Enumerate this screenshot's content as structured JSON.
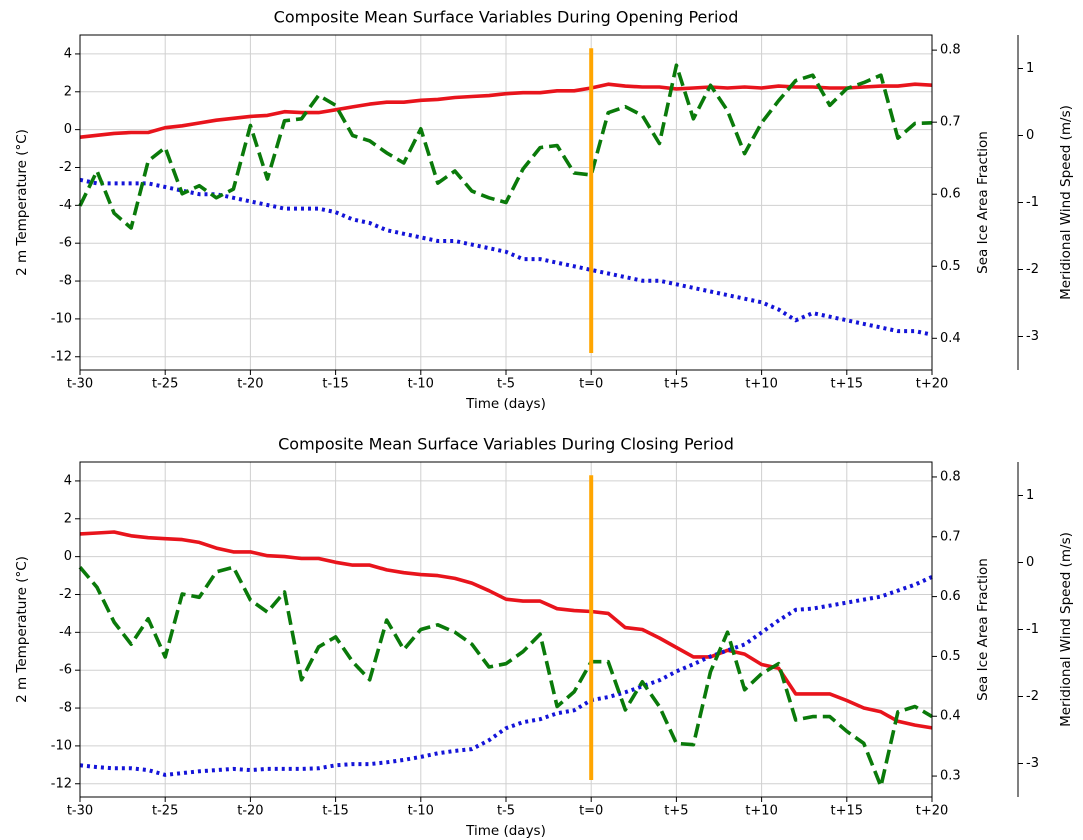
{
  "chart_data": [
    {
      "type": "line",
      "title": "Composite Mean Surface Variables During Opening Period",
      "xlabel": "Time (days)",
      "ylabel": "2 m Temperature (°C)",
      "y2label": "Sea Ice Area Fraction",
      "y3label": "Meridional Wind Speed (m/s)",
      "ylabel_color": "#e8141c",
      "y2label_color": "#1414d8",
      "y3label_color": "#0a7a0a",
      "x": [
        -30,
        -29,
        -28,
        -27,
        -26,
        -25,
        -24,
        -23,
        -22,
        -21,
        -20,
        -19,
        -18,
        -17,
        -16,
        -15,
        -14,
        -13,
        -12,
        -11,
        -10,
        -9,
        -8,
        -7,
        -6,
        -5,
        -4,
        -3,
        -2,
        -1,
        0,
        1,
        2,
        3,
        4,
        5,
        6,
        7,
        8,
        9,
        10,
        11,
        12,
        13,
        14,
        15,
        16,
        17,
        18,
        19,
        20
      ],
      "xlim": [
        -30,
        20
      ],
      "xticks": [
        {
          "value": -30,
          "label": "t-30"
        },
        {
          "value": -25,
          "label": "t-25"
        },
        {
          "value": -20,
          "label": "t-20"
        },
        {
          "value": -15,
          "label": "t-15"
        },
        {
          "value": -10,
          "label": "t-10"
        },
        {
          "value": -5,
          "label": "t-5"
        },
        {
          "value": 0,
          "label": "t=0"
        },
        {
          "value": 5,
          "label": "t+5"
        },
        {
          "value": 10,
          "label": "t+10"
        },
        {
          "value": 15,
          "label": "t+15"
        },
        {
          "value": 20,
          "label": "t+20"
        }
      ],
      "ylim": [
        -12.7,
        5.0
      ],
      "yticks": [
        -12,
        -10,
        -8,
        -6,
        -4,
        -2,
        0,
        2,
        4
      ],
      "y2lim": [
        0.356,
        0.821
      ],
      "y2ticks": [
        0.4,
        0.5,
        0.6,
        0.7,
        0.8
      ],
      "y3lim": [
        -3.5,
        1.5
      ],
      "y3ticks": [
        -3,
        -2,
        -1,
        0,
        1
      ],
      "grid": true,
      "vline": {
        "x": 0,
        "y": [
          -11.8,
          4.3
        ],
        "color": "#ffa500"
      },
      "series": [
        {
          "color": "#e8141c",
          "style": "solid",
          "axis": "y",
          "values": [
            -0.4,
            -0.3,
            -0.2,
            -0.15,
            -0.15,
            0.1,
            0.2,
            0.35,
            0.5,
            0.6,
            0.7,
            0.75,
            0.95,
            0.9,
            0.9,
            1.05,
            1.2,
            1.35,
            1.45,
            1.45,
            1.55,
            1.6,
            1.7,
            1.75,
            1.8,
            1.9,
            1.95,
            1.95,
            2.05,
            2.05,
            2.2,
            2.4,
            2.3,
            2.25,
            2.25,
            2.15,
            2.2,
            2.25,
            2.2,
            2.25,
            2.2,
            2.3,
            2.25,
            2.25,
            2.2,
            2.2,
            2.25,
            2.3,
            2.3,
            2.4,
            2.35
          ]
        },
        {
          "color": "#1414d8",
          "style": "dotted",
          "axis": "y2",
          "values": [
            0.62,
            0.615,
            0.615,
            0.615,
            0.615,
            0.61,
            0.605,
            0.6,
            0.6,
            0.595,
            0.59,
            0.585,
            0.58,
            0.58,
            0.58,
            0.575,
            0.565,
            0.56,
            0.55,
            0.545,
            0.54,
            0.535,
            0.535,
            0.53,
            0.525,
            0.52,
            0.51,
            0.51,
            0.505,
            0.5,
            0.495,
            0.49,
            0.485,
            0.48,
            0.48,
            0.475,
            0.47,
            0.465,
            0.46,
            0.455,
            0.45,
            0.44,
            0.425,
            0.435,
            0.43,
            0.425,
            0.42,
            0.415,
            0.41,
            0.41,
            0.405
          ]
        },
        {
          "color": "#0a7a0a",
          "style": "dashed",
          "axis": "y3",
          "values": [
            -1.05,
            -0.53,
            -1.16,
            -1.38,
            -0.38,
            -0.18,
            -0.87,
            -0.75,
            -0.93,
            -0.8,
            0.15,
            -0.65,
            0.22,
            0.25,
            0.6,
            0.45,
            0.0,
            -0.08,
            -0.26,
            -0.41,
            0.1,
            -0.71,
            -0.53,
            -0.83,
            -0.93,
            -1.0,
            -0.5,
            -0.18,
            -0.15,
            -0.56,
            -0.59,
            0.34,
            0.43,
            0.3,
            -0.12,
            1.05,
            0.25,
            0.75,
            0.37,
            -0.27,
            0.19,
            0.52,
            0.82,
            0.9,
            0.45,
            0.7,
            0.79,
            0.9,
            -0.04,
            0.18,
            0.19
          ]
        }
      ]
    },
    {
      "type": "line",
      "title": "Composite Mean Surface Variables During Closing Period",
      "xlabel": "Time (days)",
      "ylabel": "2 m Temperature (°C)",
      "y2label": "Sea Ice Area Fraction",
      "y3label": "Meridional Wind Speed (m/s)",
      "ylabel_color": "#e8141c",
      "y2label_color": "#1414d8",
      "y3label_color": "#0a7a0a",
      "x": [
        -30,
        -29,
        -28,
        -27,
        -26,
        -25,
        -24,
        -23,
        -22,
        -21,
        -20,
        -19,
        -18,
        -17,
        -16,
        -15,
        -14,
        -13,
        -12,
        -11,
        -10,
        -9,
        -8,
        -7,
        -6,
        -5,
        -4,
        -3,
        -2,
        -1,
        0,
        1,
        2,
        3,
        4,
        5,
        6,
        7,
        8,
        9,
        10,
        11,
        12,
        13,
        14,
        15,
        16,
        17,
        18,
        19,
        20
      ],
      "xlim": [
        -30,
        20
      ],
      "xticks": [
        {
          "value": -30,
          "label": "t-30"
        },
        {
          "value": -25,
          "label": "t-25"
        },
        {
          "value": -20,
          "label": "t-20"
        },
        {
          "value": -15,
          "label": "t-15"
        },
        {
          "value": -10,
          "label": "t-10"
        },
        {
          "value": -5,
          "label": "t-5"
        },
        {
          "value": 0,
          "label": "t=0"
        },
        {
          "value": 5,
          "label": "t+5"
        },
        {
          "value": 10,
          "label": "t+10"
        },
        {
          "value": 15,
          "label": "t+15"
        },
        {
          "value": 20,
          "label": "t+20"
        }
      ],
      "ylim": [
        -12.7,
        5.0
      ],
      "yticks": [
        -12,
        -10,
        -8,
        -6,
        -4,
        -2,
        0,
        2,
        4
      ],
      "y2lim": [
        0.265,
        0.825
      ],
      "y2ticks": [
        0.3,
        0.4,
        0.5,
        0.6,
        0.7,
        0.8
      ],
      "y3lim": [
        -3.5,
        1.5
      ],
      "y3ticks": [
        -3,
        -2,
        -1,
        0,
        1
      ],
      "grid": true,
      "vline": {
        "x": 0,
        "y": [
          -11.8,
          4.3
        ],
        "color": "#ffa500"
      },
      "series": [
        {
          "color": "#e8141c",
          "style": "solid",
          "axis": "y",
          "values": [
            1.2,
            1.25,
            1.3,
            1.1,
            1.0,
            0.95,
            0.9,
            0.75,
            0.45,
            0.25,
            0.25,
            0.05,
            0.0,
            -0.1,
            -0.1,
            -0.3,
            -0.45,
            -0.45,
            -0.7,
            -0.85,
            -0.95,
            -1.0,
            -1.15,
            -1.4,
            -1.8,
            -2.25,
            -2.35,
            -2.35,
            -2.75,
            -2.85,
            -2.9,
            -3.0,
            -3.75,
            -3.85,
            -4.3,
            -4.8,
            -5.3,
            -5.3,
            -4.95,
            -5.15,
            -5.7,
            -5.9,
            -7.25,
            -7.25,
            -7.25,
            -7.6,
            -8.0,
            -8.2,
            -8.7,
            -8.9,
            -9.05
          ]
        },
        {
          "color": "#1414d8",
          "style": "dotted",
          "axis": "y2",
          "values": [
            0.318,
            0.315,
            0.313,
            0.313,
            0.31,
            0.302,
            0.305,
            0.308,
            0.31,
            0.312,
            0.31,
            0.312,
            0.312,
            0.312,
            0.313,
            0.318,
            0.32,
            0.32,
            0.323,
            0.327,
            0.332,
            0.338,
            0.342,
            0.345,
            0.36,
            0.38,
            0.39,
            0.395,
            0.405,
            0.41,
            0.427,
            0.432,
            0.44,
            0.45,
            0.46,
            0.475,
            0.487,
            0.5,
            0.51,
            0.52,
            0.54,
            0.56,
            0.578,
            0.58,
            0.585,
            0.59,
            0.595,
            0.6,
            0.61,
            0.62,
            0.633
          ]
        },
        {
          "color": "#0a7a0a",
          "style": "dashed",
          "axis": "y3",
          "values": [
            -0.07,
            -0.37,
            -0.89,
            -1.22,
            -0.84,
            -1.41,
            -0.47,
            -0.52,
            -0.14,
            -0.07,
            -0.56,
            -0.74,
            -0.44,
            -1.75,
            -1.26,
            -1.11,
            -1.48,
            -1.75,
            -0.86,
            -1.3,
            -1.0,
            -0.93,
            -1.04,
            -1.22,
            -1.56,
            -1.51,
            -1.33,
            -1.07,
            -2.15,
            -1.93,
            -1.48,
            -1.48,
            -2.2,
            -1.78,
            -2.15,
            -2.7,
            -2.72,
            -1.63,
            -1.04,
            -1.9,
            -1.66,
            -1.51,
            -2.35,
            -2.3,
            -2.3,
            -2.52,
            -2.7,
            -3.34,
            -2.23,
            -2.15,
            -2.3
          ]
        }
      ]
    }
  ]
}
